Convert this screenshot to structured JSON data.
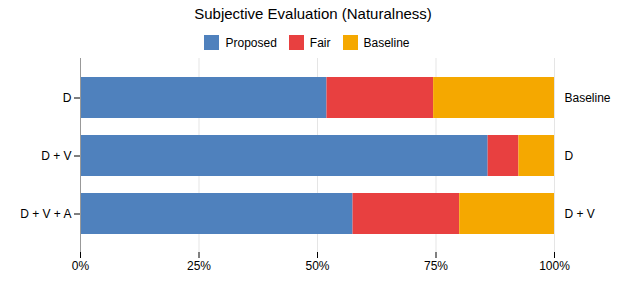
{
  "chart_data": {
    "type": "bar",
    "title": "Subjective Evaluation (Naturalness)",
    "orientation": "horizontal",
    "stacked": true,
    "categories": [
      "D",
      "D + V",
      "D + V + A"
    ],
    "series": [
      {
        "name": "Proposed",
        "color": "#4F81BD",
        "values": [
          0.52,
          0.86,
          0.575
        ]
      },
      {
        "name": "Fair",
        "color": "#E84040",
        "values": [
          0.225,
          0.065,
          0.225
        ]
      },
      {
        "name": "Baseline",
        "color": "#F5A800",
        "values": [
          0.255,
          0.075,
          0.2
        ]
      }
    ],
    "xlim": [
      0,
      1.0
    ],
    "xticks": [
      {
        "value": 0,
        "label": "0%"
      },
      {
        "value": 0.25,
        "label": "25%"
      },
      {
        "value": 0.5,
        "label": "50%"
      },
      {
        "value": 0.75,
        "label": "75%"
      },
      {
        "value": 1.0,
        "label": "100%"
      }
    ],
    "annotations": [
      {
        "category": "D",
        "text": "Baseline"
      },
      {
        "category": "D + V",
        "text": "D"
      },
      {
        "category": "D + V + A",
        "text": "D + V"
      }
    ],
    "grid": true,
    "legend": "top"
  }
}
